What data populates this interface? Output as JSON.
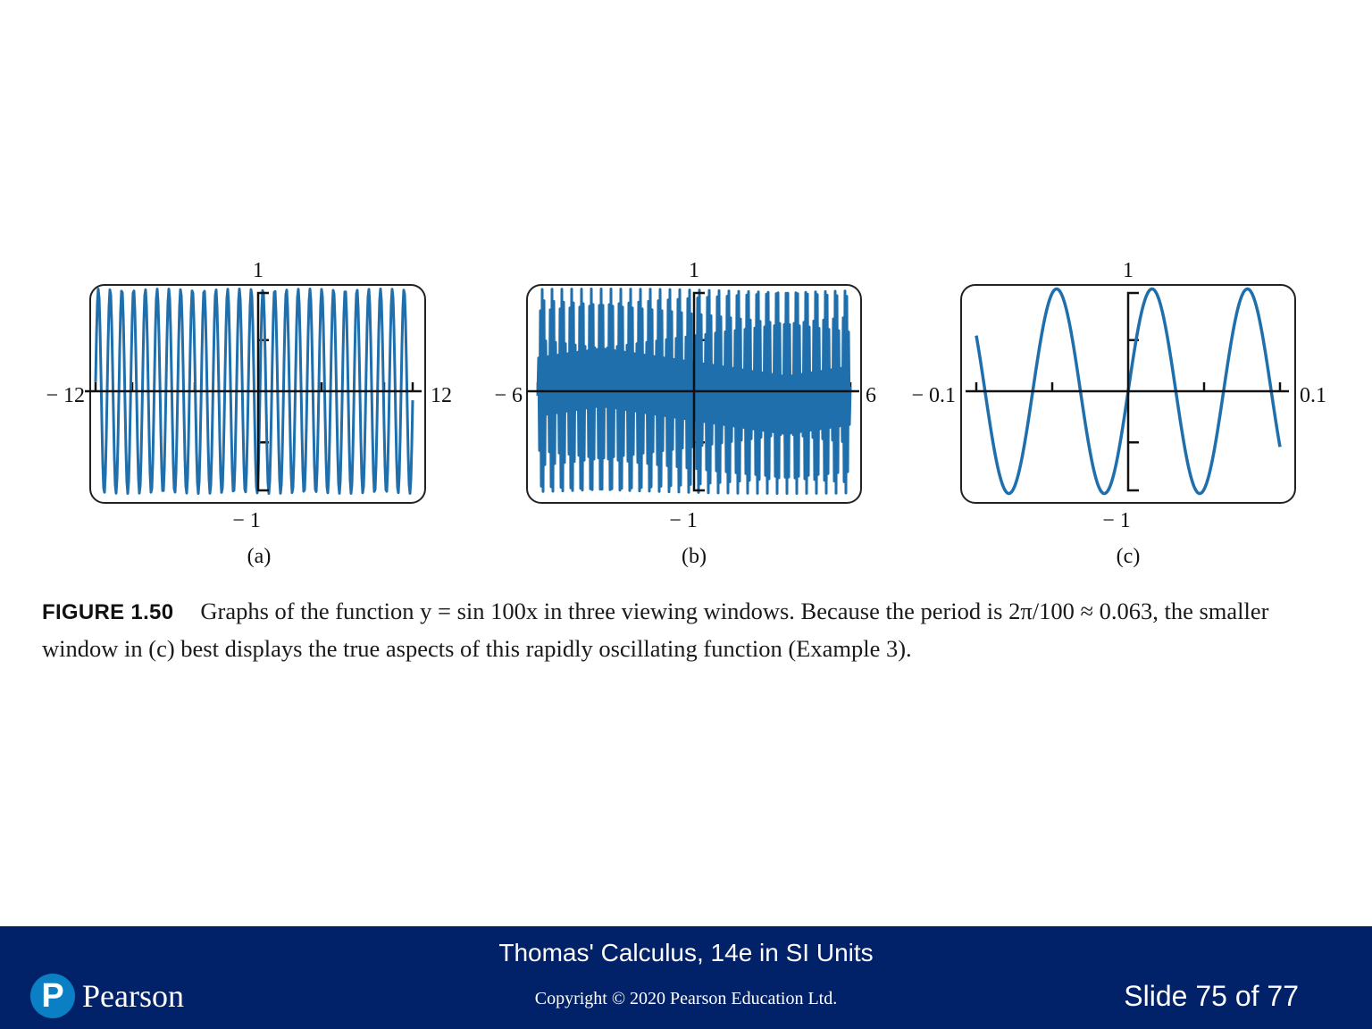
{
  "chart_data": [
    {
      "type": "line",
      "id": "a",
      "function": "y = sin 100x",
      "xlim": [
        -12,
        12
      ],
      "ylim": [
        -1,
        1
      ],
      "xtick_labels": [
        "− 12",
        "12"
      ],
      "ytick_labels": [
        "1",
        "− 1"
      ],
      "panel_label": "(a)",
      "grid": false,
      "color": "#1f6fad"
    },
    {
      "type": "line",
      "id": "b",
      "function": "y = sin 100x",
      "xlim": [
        -6,
        6
      ],
      "ylim": [
        -1,
        1
      ],
      "xtick_labels": [
        "− 6",
        "6"
      ],
      "ytick_labels": [
        "1",
        "− 1"
      ],
      "panel_label": "(b)",
      "grid": false,
      "color": "#1f6fad"
    },
    {
      "type": "line",
      "id": "c",
      "function": "y = sin 100x",
      "xlim": [
        -0.1,
        0.1
      ],
      "ylim": [
        -1,
        1
      ],
      "xtick_labels": [
        "− 0.1",
        "0.1"
      ],
      "ytick_labels": [
        "1",
        "− 1"
      ],
      "panel_label": "(c)",
      "grid": false,
      "color": "#1f6fad"
    }
  ],
  "caption": {
    "label": "FIGURE 1.50",
    "text": "Graphs of the function y = sin 100x in three viewing windows. Because the period is 2π/100 ≈ 0.063, the smaller window in (c) best displays the true aspects of this rapidly oscillating function (Example 3)."
  },
  "footer": {
    "book_title": "Thomas' Calculus, 14e in SI Units",
    "copyright": "Copyright © 2020 Pearson Education Ltd.",
    "slide_counter": "Slide 75 of 77",
    "brand_name": "Pearson",
    "brand_icon_letter": "P",
    "brand_color": "#012169"
  }
}
